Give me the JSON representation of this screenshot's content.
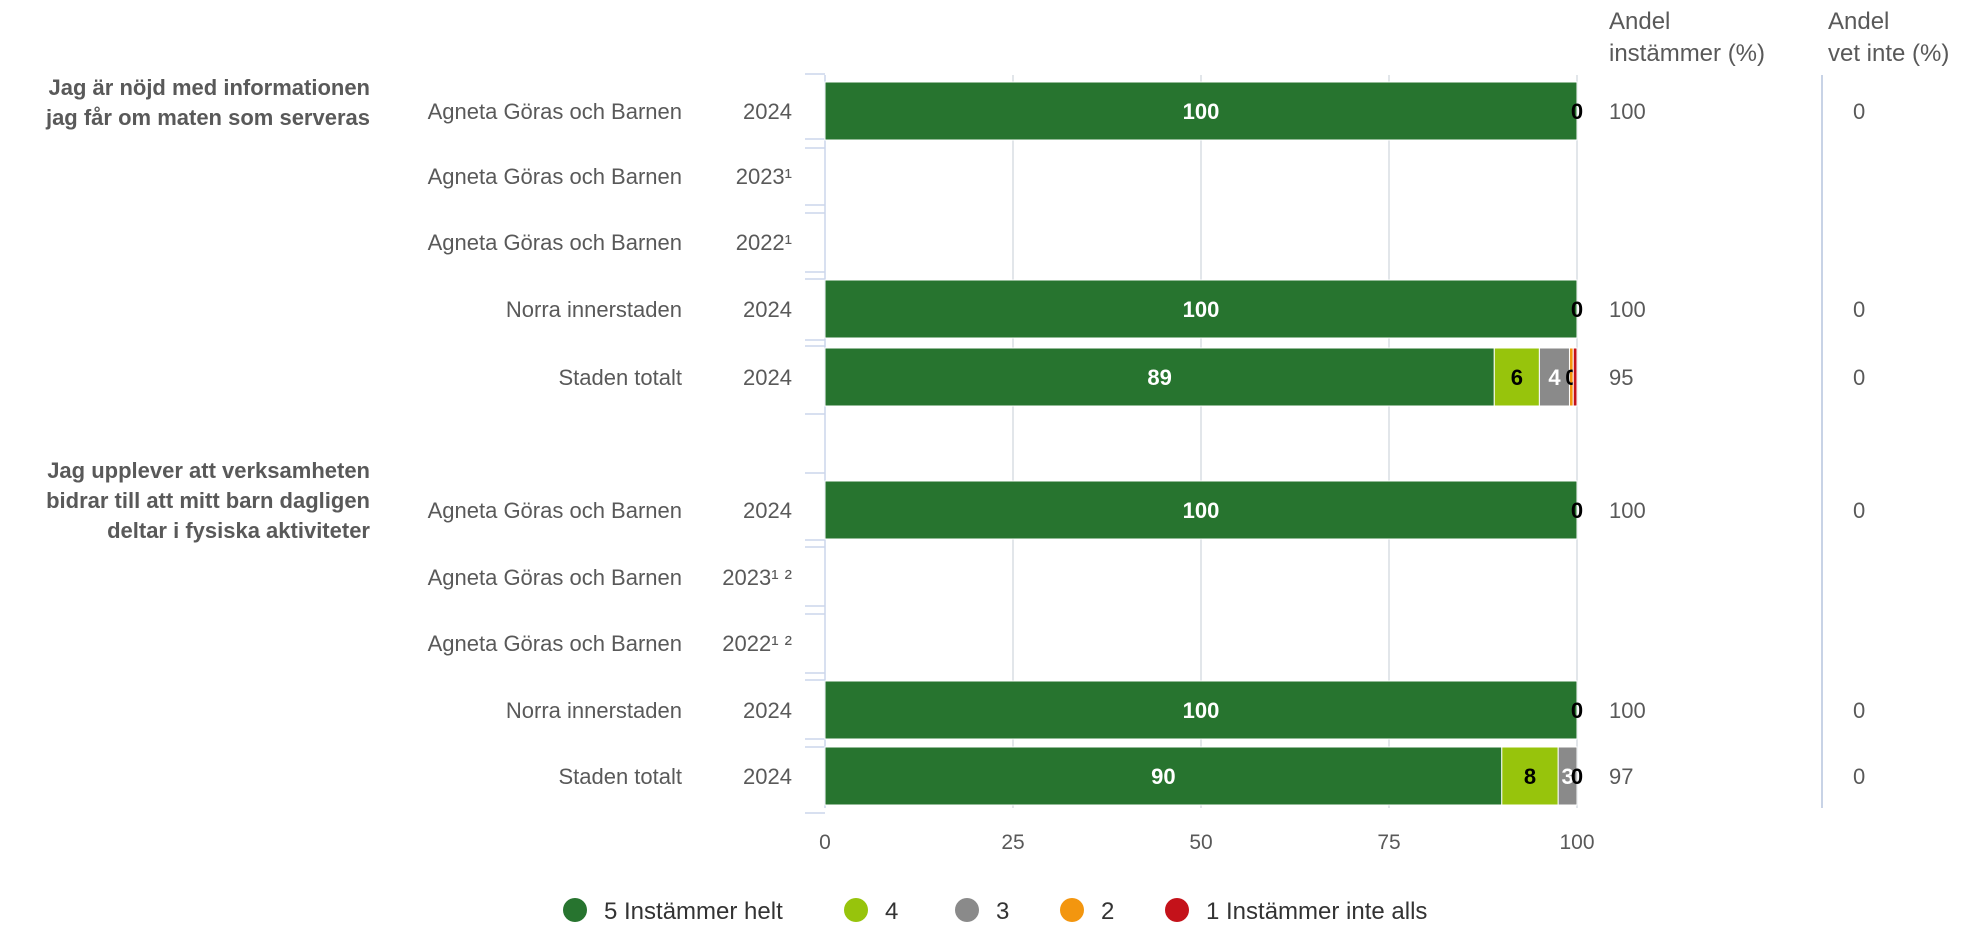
{
  "chart_data": {
    "type": "bar",
    "orientation": "horizontal",
    "stacked": true,
    "xlim": [
      0,
      100
    ],
    "xticks": [
      0,
      25,
      50,
      75,
      100
    ],
    "grid": true,
    "legend_position": "bottom",
    "series": [
      {
        "name": "5 Instämmer helt",
        "color": "#27742f"
      },
      {
        "name": "4",
        "color": "#97c40c"
      },
      {
        "name": "3",
        "color": "#8a8a8a"
      },
      {
        "name": "2",
        "color": "#f3960f"
      },
      {
        "name": "1 Instämmer inte alls",
        "color": "#c4121a"
      }
    ],
    "column_headers": {
      "agree": [
        "Andel",
        "instämmer (%)"
      ],
      "dontknow": [
        "Andel",
        "vet inte (%)"
      ]
    },
    "groups": [
      {
        "question": [
          "Jag är nöjd med informationen",
          "jag får om maten som serveras"
        ],
        "rows": [
          {
            "label": "Agneta Göras och Barnen",
            "year": "2024",
            "values": [
              100,
              0,
              0,
              0,
              0
            ],
            "labels": [
              "100",
              "0",
              "",
              "",
              ""
            ],
            "agree": "100",
            "dontknow": "0"
          },
          {
            "label": "Agneta Göras och Barnen",
            "year": "2023¹",
            "values": null,
            "labels": null,
            "agree": "",
            "dontknow": ""
          },
          {
            "label": "Agneta Göras och Barnen",
            "year": "2022¹",
            "values": null,
            "labels": null,
            "agree": "",
            "dontknow": ""
          },
          {
            "label": "Norra innerstaden",
            "year": "2024",
            "values": [
              100,
              0,
              0,
              0,
              0
            ],
            "labels": [
              "100",
              "0",
              "",
              "",
              ""
            ],
            "agree": "100",
            "dontknow": "0"
          },
          {
            "label": "Staden totalt",
            "year": "2024",
            "values": [
              89,
              6,
              4,
              0.5,
              0.5
            ],
            "labels": [
              "89",
              "6",
              "4",
              "0",
              ""
            ],
            "agree": "95",
            "dontknow": "0"
          }
        ]
      },
      {
        "question": [
          "Jag upplever att verksamheten",
          "bidrar till att mitt barn dagligen",
          "deltar i fysiska aktiviteter"
        ],
        "rows": [
          {
            "label": "Agneta Göras och Barnen",
            "year": "2024",
            "values": [
              100,
              0,
              0,
              0,
              0
            ],
            "labels": [
              "100",
              "0",
              "",
              "",
              ""
            ],
            "agree": "100",
            "dontknow": "0"
          },
          {
            "label": "Agneta Göras och Barnen",
            "year": "2023¹ ²",
            "values": null,
            "labels": null,
            "agree": "",
            "dontknow": ""
          },
          {
            "label": "Agneta Göras och Barnen",
            "year": "2022¹ ²",
            "values": null,
            "labels": null,
            "agree": "",
            "dontknow": ""
          },
          {
            "label": "Norra innerstaden",
            "year": "2024",
            "values": [
              100,
              0,
              0,
              0,
              0
            ],
            "labels": [
              "100",
              "0",
              "",
              "",
              ""
            ],
            "agree": "100",
            "dontknow": "0"
          },
          {
            "label": "Staden totalt",
            "year": "2024",
            "values": [
              90,
              7.5,
              2.5,
              0,
              0
            ],
            "labels": [
              "90",
              "8",
              "3",
              "0",
              ""
            ],
            "agree": "97",
            "dontknow": "0"
          }
        ]
      }
    ]
  }
}
